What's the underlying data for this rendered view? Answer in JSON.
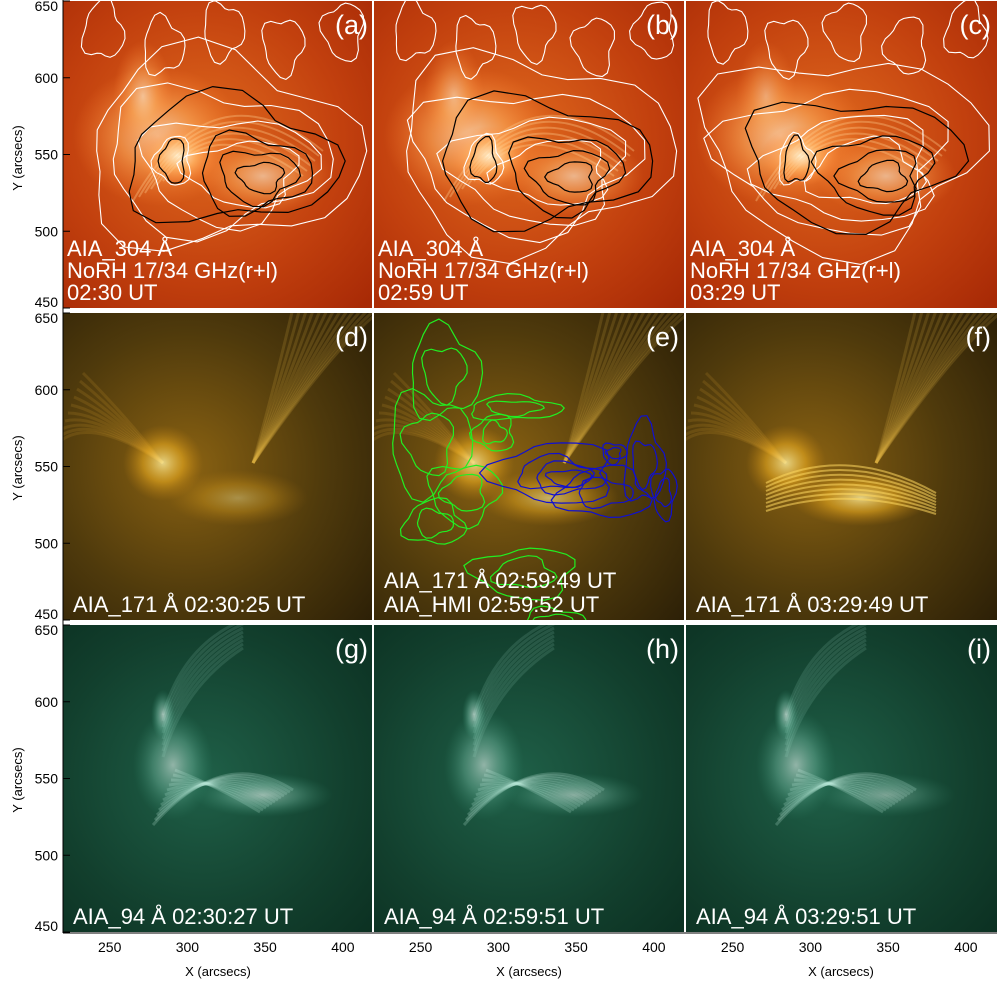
{
  "axes": {
    "xlabel": "X (arcsecs)",
    "ylabel": "Y (arcsecs)",
    "x_ticks": [
      "250",
      "300",
      "350",
      "400"
    ],
    "y_ticks": [
      "450",
      "500",
      "550",
      "600",
      "650"
    ]
  },
  "panels": [
    {
      "id": "a",
      "label": "(a)",
      "channel": "304",
      "lines": [
        "AIA_304 Å",
        "NoRH 17/34 GHz(r+l)",
        "02:30 UT"
      ]
    },
    {
      "id": "b",
      "label": "(b)",
      "channel": "304",
      "lines": [
        "AIA_304 Å",
        "NoRH 17/34 GHz(r+l)",
        "02:59 UT"
      ]
    },
    {
      "id": "c",
      "label": "(c)",
      "channel": "304",
      "lines": [
        "AIA_304 Å",
        "NoRH 17/34 GHz(r+l)",
        "03:29 UT"
      ]
    },
    {
      "id": "d",
      "label": "(d)",
      "channel": "171",
      "lines": [
        "AIA_171 Å 02:30:25 UT"
      ]
    },
    {
      "id": "e",
      "label": "(e)",
      "channel": "171",
      "lines": [
        "AIA_171 Å 02:59:49 UT",
        "AIA_HMI 02:59:52 UT"
      ]
    },
    {
      "id": "f",
      "label": "(f)",
      "channel": "171",
      "lines": [
        "AIA_171 Å 03:29:49 UT"
      ]
    },
    {
      "id": "g",
      "label": "(g)",
      "channel": "94",
      "lines": [
        "AIA_94 Å 02:30:27 UT"
      ]
    },
    {
      "id": "h",
      "label": "(h)",
      "channel": "94",
      "lines": [
        "AIA_94 Å 02:59:51 UT"
      ]
    },
    {
      "id": "i",
      "label": "(i)",
      "channel": "94",
      "lines": [
        "AIA_94 Å 03:29:51 UT"
      ]
    }
  ],
  "colors": {
    "ch304_base": "#b8300a",
    "ch304_bright": "#ffd9a0",
    "ch171_base": "#3a2a08",
    "ch171_bright": "#ffd25a",
    "ch94_base": "#0d3524",
    "ch94_bright": "#e4f7f0",
    "contour_white": "#ffffff",
    "contour_black": "#000000",
    "hmi_positive": "#22ee22",
    "hmi_negative": "#1010d0"
  }
}
